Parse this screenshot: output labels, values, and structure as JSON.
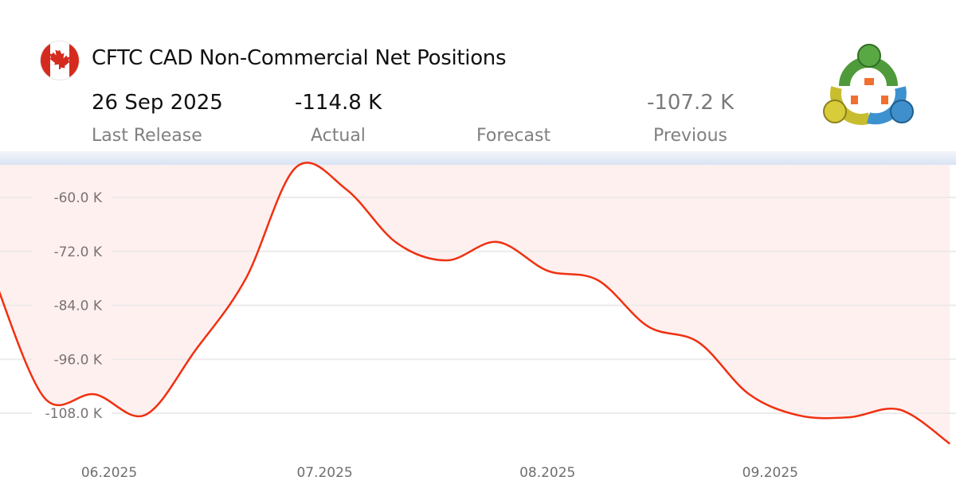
{
  "header": {
    "title": "CFTC CAD Non-Commercial Net Positions",
    "flag_icon": "canada-flag-icon",
    "logo": "metatrader-logo",
    "last_release_value": "26 Sep 2025",
    "actual_value": "-114.8 K",
    "forecast_value": "",
    "previous_value": "-107.2 K",
    "labels": {
      "last_release": "Last Release",
      "actual": "Actual",
      "forecast": "Forecast",
      "previous": "Previous"
    }
  },
  "colors": {
    "line": "#f03010",
    "fill": "#fff0f0",
    "grid": "#eeeaea"
  },
  "chart_data": {
    "type": "area",
    "fill": "above-line",
    "grid": true,
    "title": "",
    "xlabel": "",
    "ylabel": "",
    "ylim": [
      -114.8,
      -52.7
    ],
    "yticks": [
      -60,
      -72,
      -84,
      -96,
      -108
    ],
    "ytick_labels": [
      "-60.0 K",
      "-72.0 K",
      "-84.0 K",
      "-96.0 K",
      "-108.0 K"
    ],
    "xticks": [
      "2025-06-01",
      "2025-07-01",
      "2025-08-01",
      "2025-09-01"
    ],
    "xtick_labels": [
      "06.2025",
      "07.2025",
      "08.2025",
      "09.2025"
    ],
    "x": [
      "2025-05-16",
      "2025-05-23",
      "2025-05-30",
      "2025-06-06",
      "2025-06-13",
      "2025-06-20",
      "2025-06-27",
      "2025-07-04",
      "2025-07-11",
      "2025-07-18",
      "2025-07-25",
      "2025-08-01",
      "2025-08-08",
      "2025-08-15",
      "2025-08-22",
      "2025-08-29",
      "2025-09-05",
      "2025-09-12",
      "2025-09-19",
      "2025-09-26"
    ],
    "values": [
      -78.0,
      -104.6,
      -103.8,
      -108.4,
      -94.0,
      -78.1,
      -53.3,
      -58.2,
      -70.1,
      -74.0,
      -69.9,
      -76.3,
      -78.4,
      -88.7,
      -92.2,
      -103.7,
      -108.5,
      -108.9,
      -107.2,
      -114.8
    ]
  }
}
